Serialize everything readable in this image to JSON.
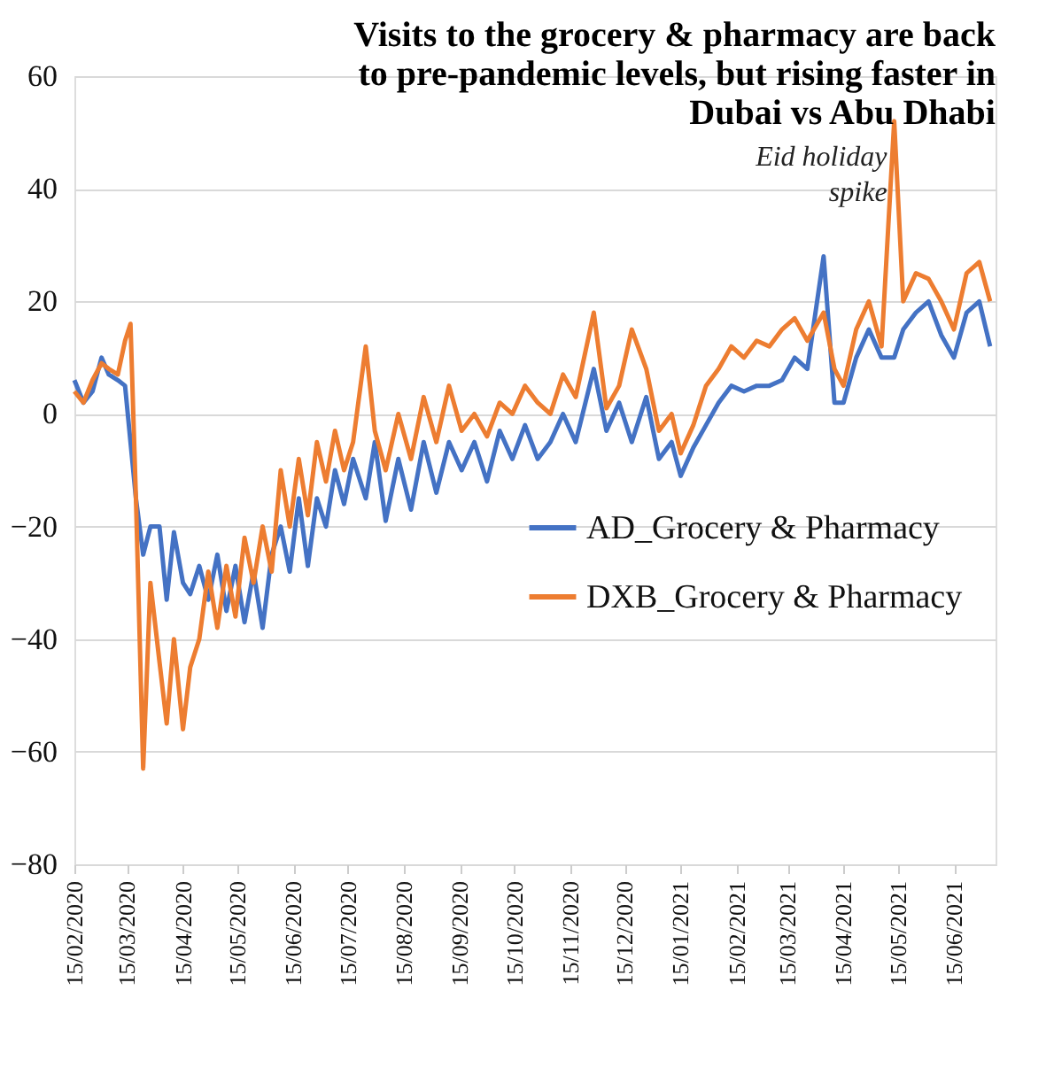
{
  "chart_data": {
    "type": "line",
    "title": "Visits to the grocery & pharmacy are back to pre-pandemic levels, but rising faster in Dubai vs Abu Dhabi",
    "x": [
      "2020-02-15",
      "2020-02-20",
      "2020-02-25",
      "2020-03-01",
      "2020-03-05",
      "2020-03-10",
      "2020-03-14",
      "2020-03-17",
      "2020-03-20",
      "2020-03-24",
      "2020-03-28",
      "2020-04-02",
      "2020-04-06",
      "2020-04-10",
      "2020-04-15",
      "2020-04-19",
      "2020-04-24",
      "2020-04-29",
      "2020-05-04",
      "2020-05-09",
      "2020-05-14",
      "2020-05-19",
      "2020-05-24",
      "2020-05-29",
      "2020-06-03",
      "2020-06-08",
      "2020-06-13",
      "2020-06-18",
      "2020-06-23",
      "2020-06-28",
      "2020-07-03",
      "2020-07-08",
      "2020-07-13",
      "2020-07-18",
      "2020-07-25",
      "2020-07-30",
      "2020-08-05",
      "2020-08-12",
      "2020-08-19",
      "2020-08-26",
      "2020-09-02",
      "2020-09-09",
      "2020-09-16",
      "2020-09-23",
      "2020-09-30",
      "2020-10-07",
      "2020-10-14",
      "2020-10-21",
      "2020-10-28",
      "2020-11-04",
      "2020-11-11",
      "2020-11-18",
      "2020-11-28",
      "2020-12-05",
      "2020-12-12",
      "2020-12-19",
      "2020-12-27",
      "2021-01-03",
      "2021-01-10",
      "2021-01-15",
      "2021-01-22",
      "2021-01-29",
      "2021-02-05",
      "2021-02-12",
      "2021-02-19",
      "2021-02-26",
      "2021-03-05",
      "2021-03-12",
      "2021-03-19",
      "2021-03-26",
      "2021-04-04",
      "2021-04-10",
      "2021-04-15",
      "2021-04-22",
      "2021-04-29",
      "2021-05-06",
      "2021-05-13",
      "2021-05-18",
      "2021-05-25",
      "2021-06-01",
      "2021-06-08",
      "2021-06-15",
      "2021-06-22",
      "2021-06-29",
      "2021-07-05"
    ],
    "series": [
      {
        "name": "AD_Grocery & Pharmacy",
        "color": "#4472c4",
        "values": [
          6,
          2,
          4,
          10,
          7,
          6,
          5,
          -5,
          -15,
          -25,
          -20,
          -20,
          -33,
          -21,
          -30,
          -32,
          -27,
          -33,
          -25,
          -35,
          -27,
          -37,
          -28,
          -38,
          -25,
          -20,
          -28,
          -15,
          -27,
          -15,
          -20,
          -10,
          -16,
          -8,
          -15,
          -5,
          -19,
          -8,
          -17,
          -5,
          -14,
          -5,
          -10,
          -5,
          -12,
          -3,
          -8,
          -2,
          -8,
          -5,
          0,
          -5,
          8,
          -3,
          2,
          -5,
          3,
          -8,
          -5,
          -11,
          -6,
          -2,
          2,
          5,
          4,
          5,
          5,
          6,
          10,
          8,
          28,
          2,
          2,
          10,
          15,
          10,
          10,
          15,
          18,
          20,
          14,
          10,
          18,
          20,
          12
        ]
      },
      {
        "name": "DXB_Grocery & Pharmacy",
        "color": "#ed7d31",
        "values": [
          4,
          2,
          6,
          9,
          8,
          7,
          13,
          16,
          -15,
          -63,
          -30,
          -44,
          -55,
          -40,
          -56,
          -45,
          -40,
          -28,
          -38,
          -27,
          -36,
          -22,
          -30,
          -20,
          -28,
          -10,
          -20,
          -8,
          -18,
          -5,
          -12,
          -3,
          -10,
          -5,
          12,
          -3,
          -10,
          0,
          -8,
          3,
          -5,
          5,
          -3,
          0,
          -4,
          2,
          0,
          5,
          2,
          0,
          7,
          3,
          18,
          1,
          5,
          15,
          8,
          -3,
          0,
          -7,
          -2,
          5,
          8,
          12,
          10,
          13,
          12,
          15,
          17,
          13,
          18,
          8,
          5,
          15,
          20,
          12,
          52,
          20,
          25,
          24,
          20,
          15,
          25,
          27,
          20
        ]
      }
    ],
    "xlim": [
      "2020-02-15",
      "2021-07-08"
    ],
    "xticks": [
      {
        "value": "2020-02-15",
        "label": "15/02/2020"
      },
      {
        "value": "2020-03-15",
        "label": "15/03/2020"
      },
      {
        "value": "2020-04-15",
        "label": "15/04/2020"
      },
      {
        "value": "2020-05-15",
        "label": "15/05/2020"
      },
      {
        "value": "2020-06-15",
        "label": "15/06/2020"
      },
      {
        "value": "2020-07-15",
        "label": "15/07/2020"
      },
      {
        "value": "2020-08-15",
        "label": "15/08/2020"
      },
      {
        "value": "2020-09-15",
        "label": "15/09/2020"
      },
      {
        "value": "2020-10-15",
        "label": "15/10/2020"
      },
      {
        "value": "2020-11-15",
        "label": "15/11/2020"
      },
      {
        "value": "2020-12-15",
        "label": "15/12/2020"
      },
      {
        "value": "2021-01-15",
        "label": "15/01/2021"
      },
      {
        "value": "2021-02-15",
        "label": "15/02/2021"
      },
      {
        "value": "2021-03-15",
        "label": "15/03/2021"
      },
      {
        "value": "2021-04-15",
        "label": "15/04/2021"
      },
      {
        "value": "2021-05-15",
        "label": "15/05/2021"
      },
      {
        "value": "2021-06-15",
        "label": "15/06/2021"
      }
    ],
    "ylim": [
      -80,
      60
    ],
    "yticks": [
      -80,
      -60,
      -40,
      -20,
      0,
      20,
      40,
      60
    ],
    "grid": "y",
    "legend": "right",
    "marker": "none",
    "line_style": "solid",
    "annotations": [
      {
        "text": "Eid holiday spike",
        "x": "2021-05-13",
        "y": 52
      }
    ]
  }
}
